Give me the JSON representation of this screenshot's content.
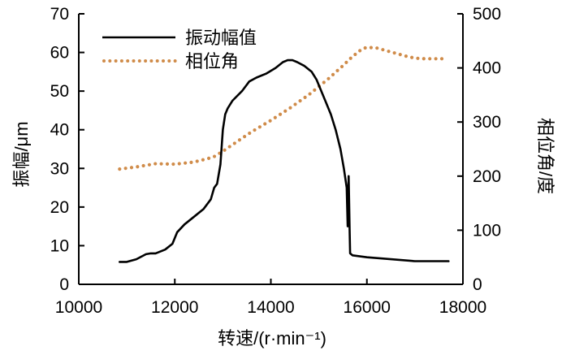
{
  "chart_data": {
    "type": "line",
    "title": "",
    "xlabel": "转速/(r·min⁻¹)",
    "ylabel": "振幅/μm",
    "y2label": "相位角/度",
    "xlim": [
      10000,
      18000
    ],
    "ylim": [
      0,
      70
    ],
    "y2lim": [
      0,
      500
    ],
    "xticks": [
      10000,
      12000,
      14000,
      16000,
      18000
    ],
    "yticks": [
      0,
      10,
      20,
      30,
      40,
      50,
      60,
      70
    ],
    "y2ticks": [
      0,
      100,
      200,
      300,
      400,
      500
    ],
    "legend_position": "top-left",
    "colors": {
      "amplitude": "#000000",
      "phase": "#d08c4a",
      "axis": "#000000"
    },
    "series": [
      {
        "name": "振动幅值",
        "axis": "left",
        "style": "solid",
        "x": [
          10850,
          11000,
          11200,
          11400,
          11500,
          11600,
          11800,
          11950,
          12050,
          12200,
          12400,
          12600,
          12750,
          12820,
          12880,
          12950,
          13000,
          13050,
          13100,
          13200,
          13400,
          13550,
          13700,
          13900,
          14100,
          14250,
          14350,
          14450,
          14550,
          14700,
          14850,
          14950,
          15050,
          15150,
          15250,
          15350,
          15450,
          15520,
          15580,
          15600,
          15620,
          15640,
          15650,
          15700,
          16000,
          16500,
          17000,
          17500,
          17700
        ],
        "values": [
          5.8,
          5.8,
          6.5,
          7.8,
          8.0,
          8.0,
          9.0,
          10.5,
          13.5,
          15.5,
          17.5,
          19.5,
          22.0,
          25.0,
          26.0,
          31.0,
          40.0,
          44.0,
          45.5,
          47.5,
          50.0,
          52.5,
          53.5,
          54.5,
          56.0,
          57.5,
          58.0,
          58.0,
          57.5,
          56.5,
          55.0,
          53.0,
          50.0,
          47.0,
          44.0,
          40.0,
          35.0,
          30.0,
          25.0,
          15.0,
          28.0,
          14.0,
          8.0,
          7.5,
          7.0,
          6.5,
          6.0,
          6.0,
          6.0
        ]
      },
      {
        "name": "相位角",
        "axis": "right",
        "style": "dotted",
        "x": [
          10850,
          11200,
          11600,
          12000,
          12400,
          12800,
          13000,
          13300,
          13600,
          14000,
          14400,
          14800,
          15200,
          15500,
          15700,
          15900,
          16000,
          16200,
          16400,
          16600,
          16800,
          17000,
          17200,
          17400,
          17600
        ],
        "values": [
          213,
          217,
          223,
          222,
          226,
          235,
          246,
          264,
          282,
          303,
          326,
          351,
          380,
          404,
          421,
          435,
          438,
          437,
          432,
          427,
          422,
          418,
          417,
          417,
          417
        ]
      }
    ]
  }
}
